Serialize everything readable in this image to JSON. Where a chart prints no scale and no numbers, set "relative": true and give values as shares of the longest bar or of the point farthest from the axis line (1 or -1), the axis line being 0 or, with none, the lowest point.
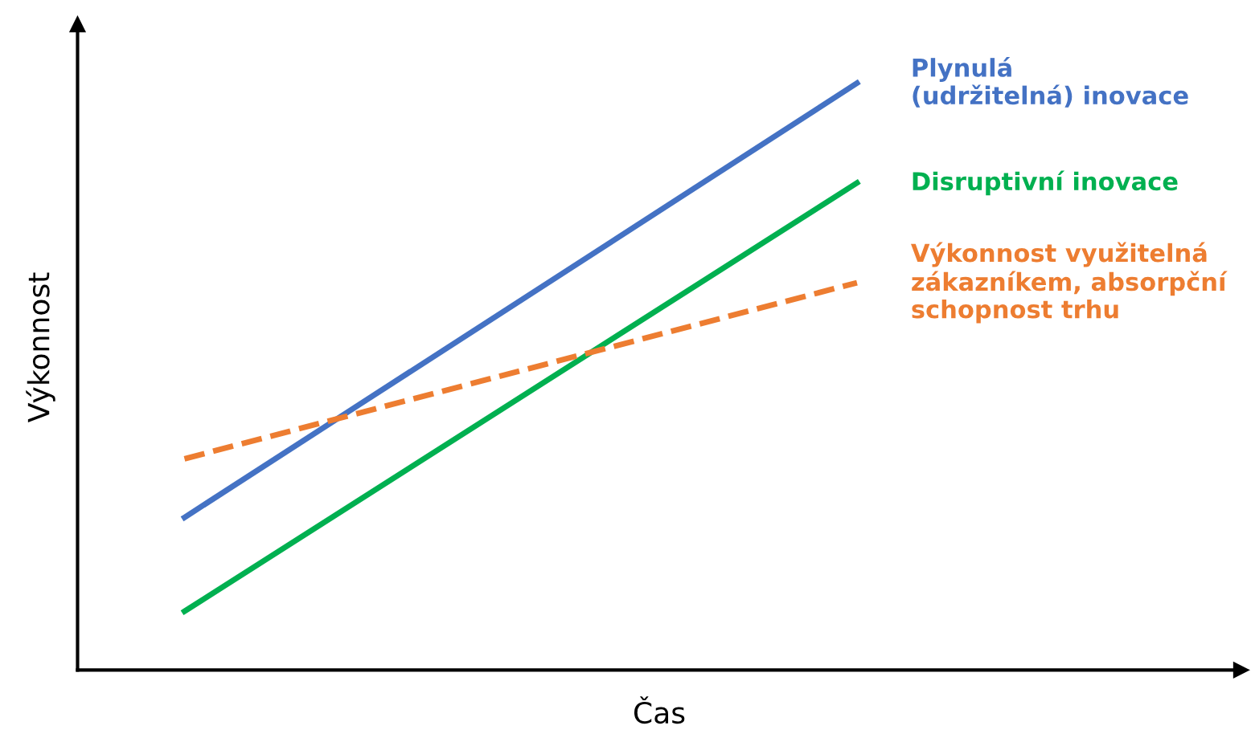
{
  "chart_data": {
    "type": "line",
    "relative": true,
    "xlabel": "Čas",
    "ylabel": "Výkonnost",
    "categories": [
      null,
      null
    ],
    "series": [
      {
        "name": "Plynulá\n(udržitelná) inovace",
        "color": "#4472c4",
        "values": [
          0.26,
          1
        ],
        "line_style": "solid"
      },
      {
        "name": "Disruptivní inovace",
        "color": "#00b050",
        "values": [
          0.1,
          0.83
        ],
        "line_style": "solid"
      },
      {
        "name": "Výkonnost využitelná\nzákazníkem, absorpční\nschopnost trhu",
        "color": "#ed7d31",
        "values": [
          0.36,
          0.66
        ],
        "line_style": "dashed"
      }
    ],
    "legend": false,
    "grid": false,
    "tick_labels": false,
    "marker": "none"
  }
}
